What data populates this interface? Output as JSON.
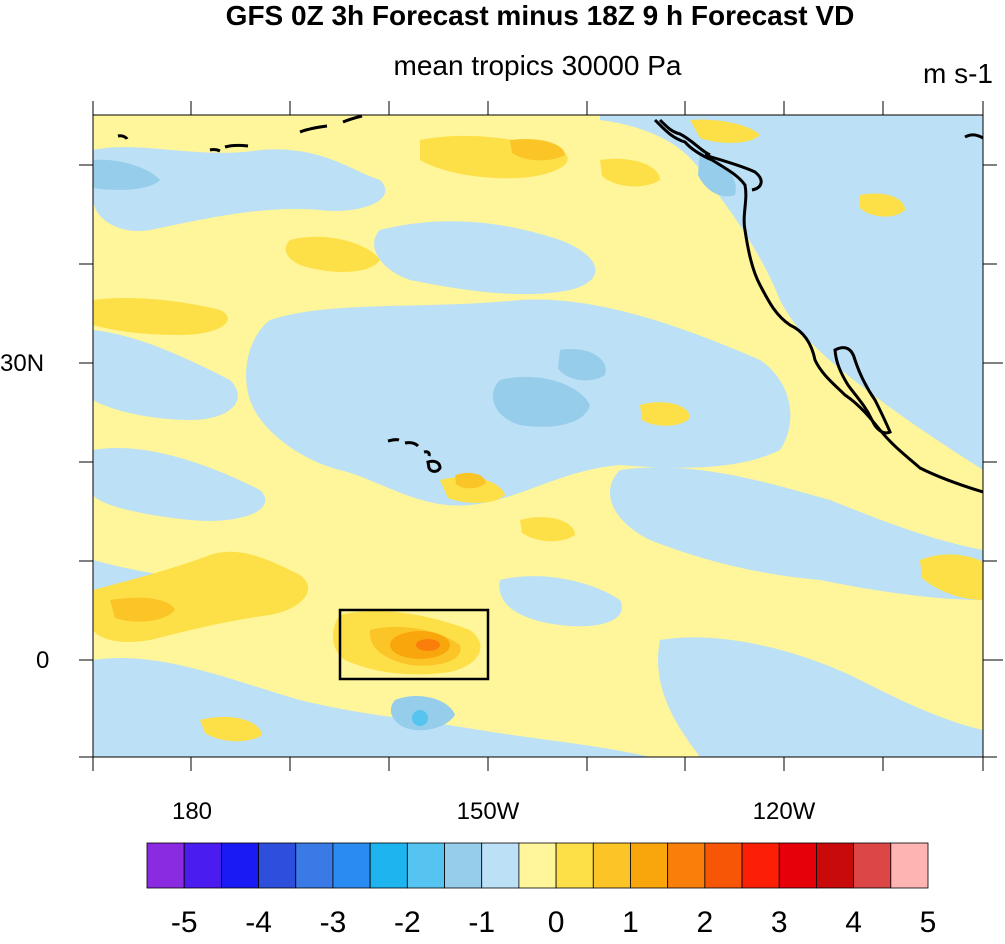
{
  "title": "GFS 0Z 3h Forecast minus 18Z 9 h Forecast VD",
  "subtitle": "mean tropics 30000 Pa",
  "units": "m s-1",
  "map": {
    "lat_labels": [
      "30N",
      "0"
    ],
    "lon_labels": [
      "180",
      "150W",
      "120W"
    ]
  },
  "colorbar": {
    "labels": [
      "-5",
      "-4",
      "-3",
      "-2",
      "-1",
      "0",
      "1",
      "2",
      "3",
      "4",
      "5"
    ],
    "colors": [
      "#8a2be2",
      "#4b1cf0",
      "#1a1af5",
      "#2e4fdc",
      "#3a7ae6",
      "#2a8cf0",
      "#1eb4f0",
      "#55c4f0",
      "#96cdeb",
      "#bce0f5",
      "#fff59a",
      "#fde047",
      "#fbc528",
      "#f9a60d",
      "#f97e0a",
      "#f75606",
      "#fa1f05",
      "#e6000a",
      "#c80a0a",
      "#dc4646",
      "#ffb4b4"
    ]
  },
  "colors": {
    "background": "#fff59a",
    "light_blue": "#bce0f5",
    "mid_blue": "#96cdeb",
    "yellow": "#fde047",
    "orange": "#f9a60d",
    "coast": "#000000"
  }
}
